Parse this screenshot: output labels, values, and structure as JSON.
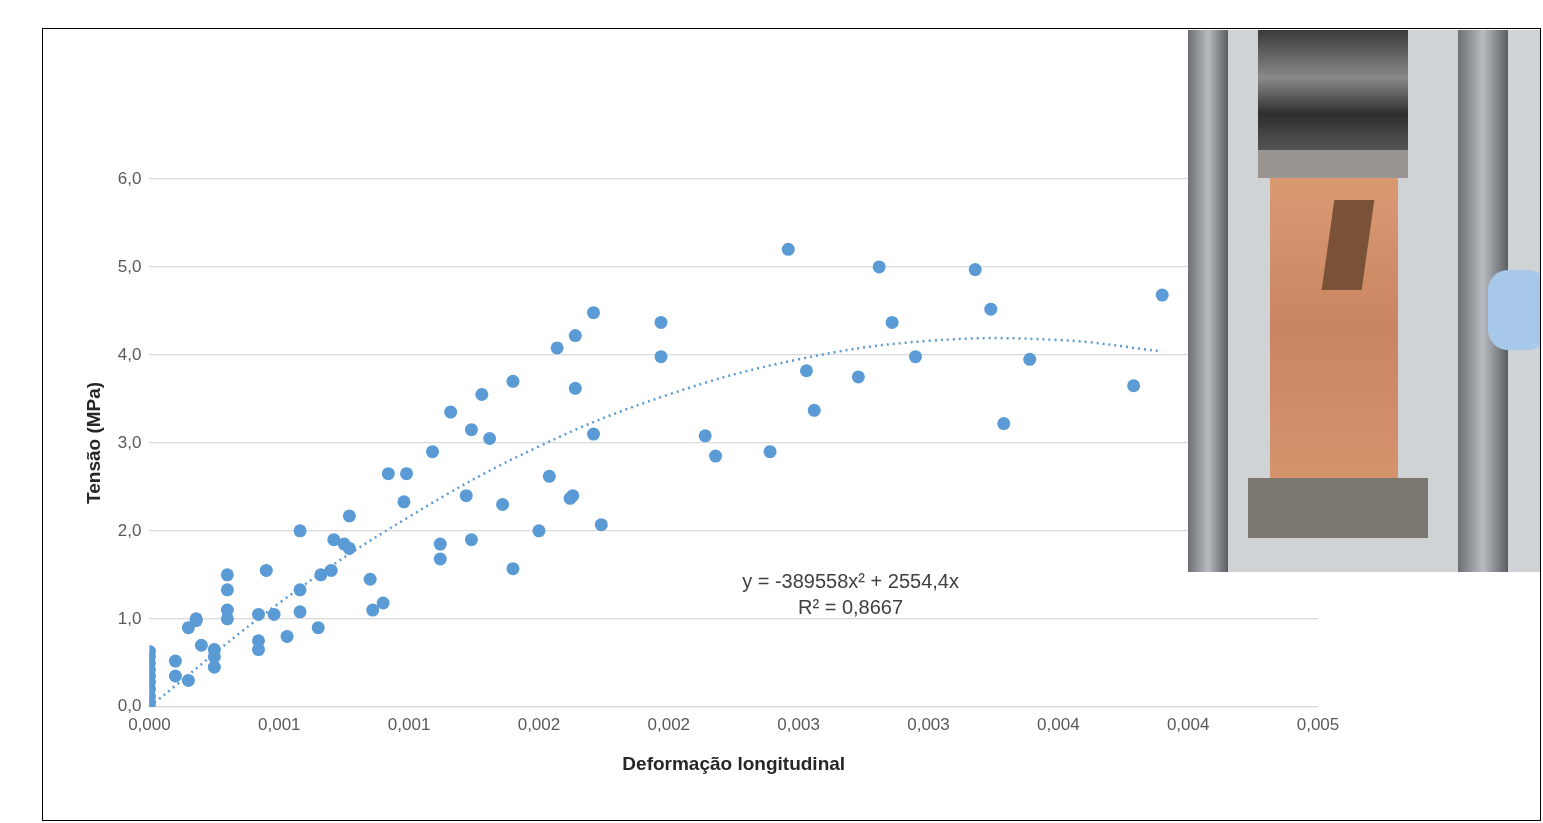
{
  "chart_data": {
    "type": "scatter",
    "x_label": "Deformação longitudinal",
    "y_label": "Tensão (MPa)",
    "annotations": [
      "y = -389558x² + 2554,4x",
      "R² = 0,8667"
    ],
    "xlim": [
      0,
      0.0045
    ],
    "ylim": [
      0,
      6
    ],
    "xticks": [
      {
        "value": 0,
        "label": "0,000"
      },
      {
        "value": 0.0005,
        "label": "0,001"
      },
      {
        "value": 0.001,
        "label": "0,001"
      },
      {
        "value": 0.0015,
        "label": "0,002"
      },
      {
        "value": 0.002,
        "label": "0,002"
      },
      {
        "value": 0.0025,
        "label": "0,003"
      },
      {
        "value": 0.003,
        "label": "0,003"
      },
      {
        "value": 0.0035,
        "label": "0,004"
      },
      {
        "value": 0.004,
        "label": "0,004"
      },
      {
        "value": 0.0045,
        "label": "0,005"
      }
    ],
    "yticks": [
      {
        "value": 0,
        "label": "0,0"
      },
      {
        "value": 1,
        "label": "1,0"
      },
      {
        "value": 2,
        "label": "2,0"
      },
      {
        "value": 3,
        "label": "3,0"
      },
      {
        "value": 4,
        "label": "4,0"
      },
      {
        "value": 5,
        "label": "5,0"
      },
      {
        "value": 6,
        "label": "6,0"
      }
    ],
    "grid": true,
    "series": [
      {
        "type": "scatter",
        "marker": "circle",
        "color": "#5b9bd5",
        "x": [
          0,
          0,
          0,
          0,
          0,
          0,
          0,
          0,
          0,
          0,
          0.0001,
          0.0001,
          0.00015,
          0.00015,
          0.00018,
          0.00018,
          0.0002,
          0.00025,
          0.00025,
          0.00025,
          0.0003,
          0.0003,
          0.0003,
          0.0003,
          0.00042,
          0.00042,
          0.00042,
          0.00045,
          0.00048,
          0.00053,
          0.00058,
          0.00058,
          0.00058,
          0.00065,
          0.00066,
          0.0007,
          0.00071,
          0.00075,
          0.00077,
          0.00077,
          0.00085,
          0.00086,
          0.0009,
          0.00092,
          0.00099,
          0.00098,
          0.00109,
          0.00112,
          0.00112,
          0.00116,
          0.00122,
          0.00124,
          0.00124,
          0.00128,
          0.00131,
          0.00136,
          0.0014,
          0.0014,
          0.0015,
          0.00154,
          0.00157,
          0.00164,
          0.00164,
          0.00162,
          0.00163,
          0.00171,
          0.00171,
          0.00174,
          0.00197,
          0.00197,
          0.00214,
          0.00218,
          0.00239,
          0.00246,
          0.00253,
          0.00256,
          0.00273,
          0.00281,
          0.00286,
          0.00295,
          0.00318,
          0.00324,
          0.00329,
          0.00339,
          0.00379,
          0.0039
        ],
        "values": [
          0,
          0.05,
          0.12,
          0.2,
          0.28,
          0.35,
          0.42,
          0.5,
          0.57,
          0.63,
          0.52,
          0.35,
          0.3,
          0.9,
          0.98,
          1.0,
          0.7,
          0.65,
          0.57,
          0.45,
          1.5,
          1.33,
          1.1,
          1.0,
          1.05,
          0.75,
          0.65,
          1.55,
          1.05,
          0.8,
          2.0,
          1.33,
          1.08,
          0.9,
          1.5,
          1.55,
          1.9,
          1.85,
          1.8,
          2.17,
          1.45,
          1.1,
          1.18,
          2.65,
          2.65,
          2.33,
          2.9,
          1.85,
          1.68,
          3.35,
          2.4,
          3.15,
          1.9,
          3.55,
          3.05,
          2.3,
          3.7,
          1.57,
          2.0,
          2.62,
          4.08,
          4.22,
          3.62,
          2.37,
          2.4,
          4.48,
          3.1,
          2.07,
          4.37,
          3.98,
          3.08,
          2.85,
          2.9,
          5.2,
          3.82,
          3.37,
          3.75,
          5.0,
          4.37,
          3.98,
          4.97,
          4.52,
          3.22,
          3.95,
          3.65,
          4.68
        ]
      },
      {
        "type": "line",
        "line_style": "dotted",
        "color": "#5b9bd5",
        "x": [
          0,
          0.0005,
          0.001,
          0.0015,
          0.002,
          0.0025,
          0.003,
          0.0035,
          0.0039
        ],
        "values": [
          0,
          1.18,
          2.16,
          2.96,
          3.55,
          3.95,
          4.16,
          4.17,
          4.04
        ]
      }
    ]
  }
}
